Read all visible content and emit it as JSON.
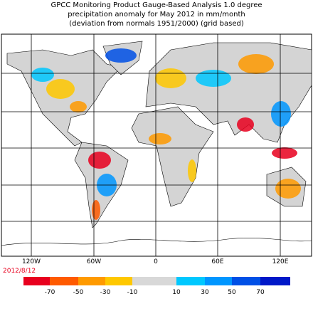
{
  "header": {
    "title_lines": [
      "GPCC Monitoring Product Gauge-Based Analysis 1.0 degree",
      "precipitation anomaly for May  2012 in mm/month",
      "(deviation from normals 1951/2000) (grid based)"
    ]
  },
  "map": {
    "longitude_labels": [
      "120W",
      "60W",
      "0",
      "60E",
      "120E"
    ]
  },
  "footer": {
    "date": "2012/8/12"
  },
  "legend": {
    "colors": [
      "#e8001e",
      "#ff5a00",
      "#ff9a00",
      "#ffc800",
      "#d8d8d8",
      "#00c8ff",
      "#0096ff",
      "#0050e6",
      "#0018c8"
    ],
    "labels": [
      -70,
      -50,
      -30,
      -10,
      10,
      30,
      50,
      70
    ]
  }
}
